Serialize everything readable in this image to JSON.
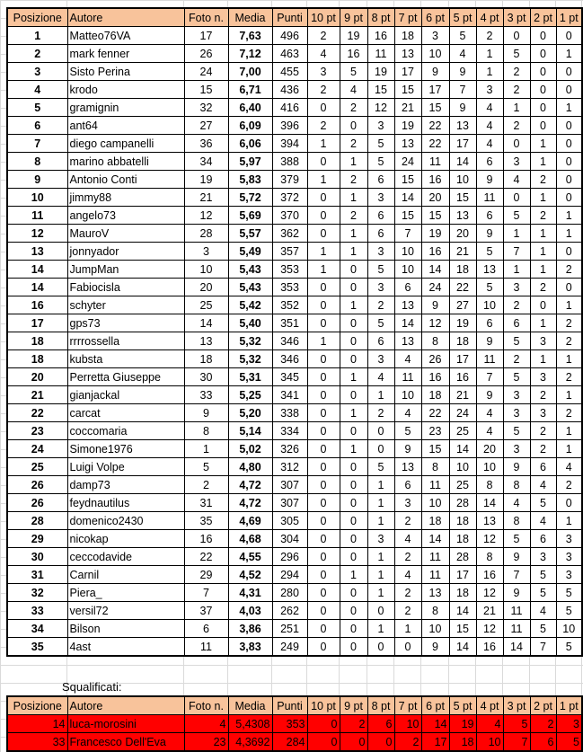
{
  "columns": [
    "Posizione",
    "Autore",
    "Foto n.",
    "Media",
    "Punti",
    "10 pt",
    "9 pt",
    "8 pt",
    "7 pt",
    "6 pt",
    "5 pt",
    "4 pt",
    "3 pt",
    "2 pt",
    "1 pt"
  ],
  "rows": [
    [
      "1",
      "Matteo76VA",
      "17",
      "7,63",
      "496",
      "2",
      "19",
      "16",
      "18",
      "3",
      "5",
      "2",
      "0",
      "0",
      "0"
    ],
    [
      "2",
      "mark fenner",
      "26",
      "7,12",
      "463",
      "4",
      "16",
      "11",
      "13",
      "10",
      "4",
      "1",
      "5",
      "0",
      "1"
    ],
    [
      "3",
      "Sisto Perina",
      "24",
      "7,00",
      "455",
      "3",
      "5",
      "19",
      "17",
      "9",
      "9",
      "1",
      "2",
      "0",
      "0"
    ],
    [
      "4",
      "krodo",
      "15",
      "6,71",
      "436",
      "2",
      "4",
      "15",
      "15",
      "17",
      "7",
      "3",
      "2",
      "0",
      "0"
    ],
    [
      "5",
      "gramignin",
      "32",
      "6,40",
      "416",
      "0",
      "2",
      "12",
      "21",
      "15",
      "9",
      "4",
      "1",
      "0",
      "1"
    ],
    [
      "6",
      "ant64",
      "27",
      "6,09",
      "396",
      "2",
      "0",
      "3",
      "19",
      "22",
      "13",
      "4",
      "2",
      "0",
      "0"
    ],
    [
      "7",
      "diego campanelli",
      "36",
      "6,06",
      "394",
      "1",
      "2",
      "5",
      "13",
      "22",
      "17",
      "4",
      "0",
      "1",
      "0"
    ],
    [
      "8",
      "marino abbatelli",
      "34",
      "5,97",
      "388",
      "0",
      "1",
      "5",
      "24",
      "11",
      "14",
      "6",
      "3",
      "1",
      "0"
    ],
    [
      "9",
      "Antonio Conti",
      "19",
      "5,83",
      "379",
      "1",
      "2",
      "6",
      "15",
      "16",
      "10",
      "9",
      "4",
      "2",
      "0"
    ],
    [
      "10",
      "jimmy88",
      "21",
      "5,72",
      "372",
      "0",
      "1",
      "3",
      "14",
      "20",
      "15",
      "11",
      "0",
      "1",
      "0"
    ],
    [
      "11",
      "angelo73",
      "12",
      "5,69",
      "370",
      "0",
      "2",
      "6",
      "15",
      "15",
      "13",
      "6",
      "5",
      "2",
      "1"
    ],
    [
      "12",
      "MauroV",
      "28",
      "5,57",
      "362",
      "0",
      "1",
      "6",
      "7",
      "19",
      "20",
      "9",
      "1",
      "1",
      "1"
    ],
    [
      "13",
      "jonnyador",
      "3",
      "5,49",
      "357",
      "1",
      "1",
      "3",
      "10",
      "16",
      "21",
      "5",
      "7",
      "1",
      "0"
    ],
    [
      "14",
      "JumpMan",
      "10",
      "5,43",
      "353",
      "1",
      "0",
      "5",
      "10",
      "14",
      "18",
      "13",
      "1",
      "1",
      "2"
    ],
    [
      "14",
      "Fabiocisla",
      "20",
      "5,43",
      "353",
      "0",
      "0",
      "3",
      "6",
      "24",
      "22",
      "5",
      "3",
      "2",
      "0"
    ],
    [
      "16",
      "schyter",
      "25",
      "5,42",
      "352",
      "0",
      "1",
      "2",
      "13",
      "9",
      "27",
      "10",
      "2",
      "0",
      "1"
    ],
    [
      "17",
      "gps73",
      "14",
      "5,40",
      "351",
      "0",
      "0",
      "5",
      "14",
      "12",
      "19",
      "6",
      "6",
      "1",
      "2"
    ],
    [
      "18",
      "rrrrossella",
      "13",
      "5,32",
      "346",
      "1",
      "0",
      "6",
      "13",
      "8",
      "18",
      "9",
      "5",
      "3",
      "2"
    ],
    [
      "18",
      "kubsta",
      "18",
      "5,32",
      "346",
      "0",
      "0",
      "3",
      "4",
      "26",
      "17",
      "11",
      "2",
      "1",
      "1"
    ],
    [
      "20",
      "Perretta Giuseppe",
      "30",
      "5,31",
      "345",
      "0",
      "1",
      "4",
      "11",
      "16",
      "16",
      "7",
      "5",
      "3",
      "2"
    ],
    [
      "21",
      "gianjackal",
      "33",
      "5,25",
      "341",
      "0",
      "0",
      "1",
      "10",
      "18",
      "21",
      "9",
      "3",
      "2",
      "1"
    ],
    [
      "22",
      "carcat",
      "9",
      "5,20",
      "338",
      "0",
      "1",
      "2",
      "4",
      "22",
      "24",
      "4",
      "3",
      "3",
      "2"
    ],
    [
      "23",
      "coccomaria",
      "8",
      "5,14",
      "334",
      "0",
      "0",
      "0",
      "5",
      "23",
      "25",
      "4",
      "5",
      "2",
      "1"
    ],
    [
      "24",
      "Simone1976",
      "1",
      "5,02",
      "326",
      "0",
      "1",
      "0",
      "9",
      "15",
      "14",
      "20",
      "3",
      "2",
      "1"
    ],
    [
      "25",
      "Luigi Volpe",
      "5",
      "4,80",
      "312",
      "0",
      "0",
      "5",
      "13",
      "8",
      "10",
      "10",
      "9",
      "6",
      "4"
    ],
    [
      "26",
      "damp73",
      "2",
      "4,72",
      "307",
      "0",
      "0",
      "1",
      "6",
      "11",
      "25",
      "8",
      "8",
      "4",
      "2"
    ],
    [
      "26",
      "feydnautilus",
      "31",
      "4,72",
      "307",
      "0",
      "0",
      "1",
      "3",
      "10",
      "28",
      "14",
      "4",
      "5",
      "0"
    ],
    [
      "28",
      "domenico2430",
      "35",
      "4,69",
      "305",
      "0",
      "0",
      "1",
      "2",
      "18",
      "18",
      "13",
      "8",
      "4",
      "1"
    ],
    [
      "29",
      "nicokap",
      "16",
      "4,68",
      "304",
      "0",
      "0",
      "3",
      "4",
      "14",
      "18",
      "12",
      "5",
      "6",
      "3"
    ],
    [
      "30",
      "ceccodavide",
      "22",
      "4,55",
      "296",
      "0",
      "0",
      "1",
      "2",
      "11",
      "28",
      "8",
      "9",
      "3",
      "3"
    ],
    [
      "31",
      "Carnil",
      "29",
      "4,52",
      "294",
      "0",
      "1",
      "1",
      "4",
      "11",
      "17",
      "16",
      "7",
      "5",
      "3"
    ],
    [
      "32",
      "Piera_",
      "7",
      "4,31",
      "280",
      "0",
      "0",
      "1",
      "2",
      "13",
      "18",
      "12",
      "9",
      "5",
      "5"
    ],
    [
      "33",
      "versil72",
      "37",
      "4,03",
      "262",
      "0",
      "0",
      "0",
      "2",
      "8",
      "14",
      "21",
      "11",
      "4",
      "5"
    ],
    [
      "34",
      "Bilson",
      "6",
      "3,86",
      "251",
      "0",
      "0",
      "1",
      "1",
      "10",
      "15",
      "12",
      "11",
      "5",
      "10"
    ],
    [
      "35",
      "4ast",
      "11",
      "3,83",
      "249",
      "0",
      "0",
      "0",
      "0",
      "9",
      "14",
      "16",
      "14",
      "7",
      "5"
    ]
  ],
  "disqualified_label": "Squalificati:",
  "disqualified": [
    [
      "14",
      "luca-morosini",
      "4",
      "5,4308",
      "353",
      "0",
      "2",
      "6",
      "10",
      "14",
      "19",
      "4",
      "5",
      "2",
      "3"
    ],
    [
      "33",
      "Francesco Dell'Eva",
      "23",
      "4,3692",
      "284",
      "0",
      "0",
      "0",
      "2",
      "17",
      "18",
      "10",
      "7",
      "6",
      "5"
    ]
  ],
  "colors": {
    "header": "#f8c39b",
    "disqualified": "#ff0000"
  }
}
